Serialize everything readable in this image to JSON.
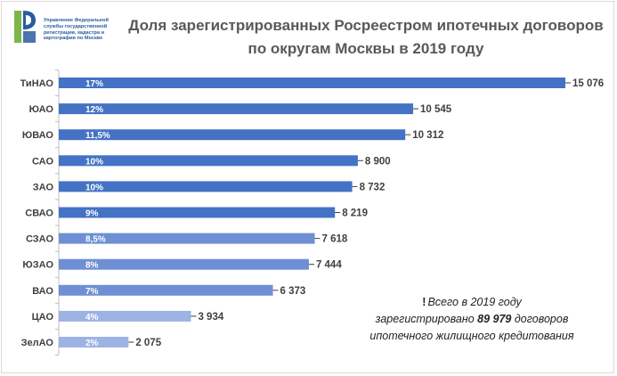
{
  "logo": {
    "line1": "Управление Федеральной",
    "line2": "службы государственной",
    "line3": "регистрации, кадастра и",
    "line4": "картографии по Москве"
  },
  "note": {
    "mark": "!",
    "line1": "Всего в 2019 году",
    "line2_pre": "зарегистрировано",
    "line2_num": "89 979",
    "line2_post": "договоров",
    "line3": "ипотечного жилищного кредитования"
  },
  "colors": {
    "bar_dark": "#4472c4",
    "bar_mid": "#6f8fd4",
    "bar_light": "#9cb3e3",
    "axis": "#bfbfbf",
    "text": "#404040",
    "title": "#595959"
  },
  "chart_data": {
    "type": "bar",
    "orientation": "horizontal",
    "title": "Доля зарегистрированных Росреестром ипотечных договоров по округам Москвы в 2019 году",
    "categories": [
      "ТиНАО",
      "ЮАО",
      "ЮВАО",
      "САО",
      "ЗАО",
      "СВАО",
      "СЗАО",
      "ЮЗАО",
      "ВАО",
      "ЦАО",
      "ЗелАО"
    ],
    "values": [
      15076,
      10545,
      10312,
      8900,
      8732,
      8219,
      7618,
      7444,
      6373,
      3934,
      2075
    ],
    "value_labels": [
      "15 076",
      "10 545",
      "10 312",
      "8 900",
      "8 732",
      "8 219",
      "7 618",
      "7 444",
      "6 373",
      "3 934",
      "2 075"
    ],
    "share_labels": [
      "17%",
      "12%",
      "11,5%",
      "10%",
      "10%",
      "9%",
      "8,5%",
      "8%",
      "7%",
      "4%",
      "2%"
    ],
    "xlim": [
      0,
      15076
    ],
    "grid": false
  }
}
